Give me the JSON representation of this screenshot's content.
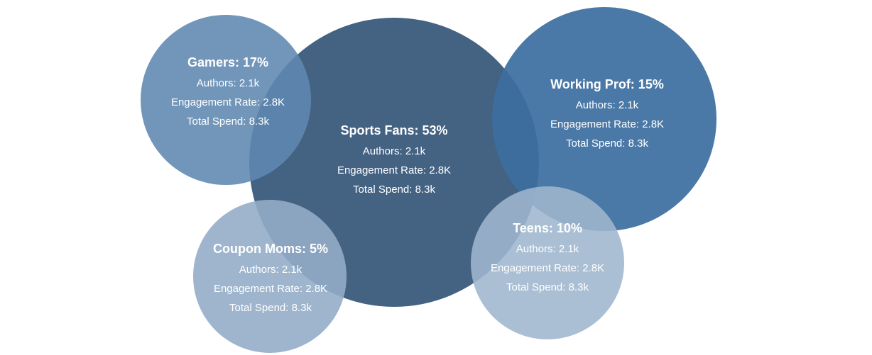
{
  "chart_data": {
    "type": "bubble",
    "segments": [
      {
        "id": "sports-fans",
        "name": "Sports Fans",
        "share": 53,
        "title": "Sports Fans: 53%",
        "lines": [
          "Authors: 2.1k",
          "Engagement Rate: 2.8K",
          "Total Spend: 8.3k"
        ],
        "color": "#405f80"
      },
      {
        "id": "gamers",
        "name": "Gamers",
        "share": 17,
        "title": "Gamers: 17%",
        "lines": [
          "Authors: 2.1k",
          "Engagement Rate: 2.8K",
          "Total Spend: 8.3k"
        ],
        "color": "#5f87b0"
      },
      {
        "id": "working-prof",
        "name": "Working Prof",
        "share": 15,
        "title": "Working Prof: 15%",
        "lines": [
          "Authors: 2.1k",
          "Engagement Rate: 2.8K",
          "Total Spend: 8.3k"
        ],
        "color": "#3c6ea0"
      },
      {
        "id": "teens",
        "name": "Teens",
        "share": 10,
        "title": "Teens: 10%",
        "lines": [
          "Authors: 2.1k",
          "Engagement Rate: 2.8K",
          "Total Spend: 8.3k"
        ],
        "color": "#9fb6ce"
      },
      {
        "id": "coupon-moms",
        "name": "Coupon Moms",
        "share": 5,
        "title": "Coupon Moms: 5%",
        "lines": [
          "Authors: 2.1k",
          "Engagement Rate: 2.8K",
          "Total Spend: 8.3k"
        ],
        "color": "#94adc8"
      }
    ]
  }
}
